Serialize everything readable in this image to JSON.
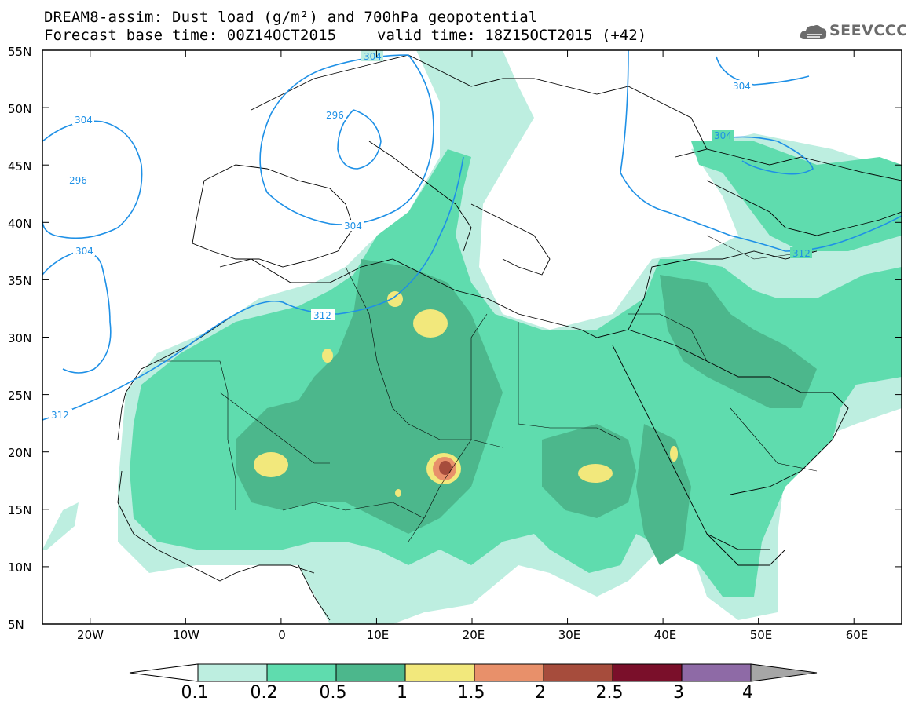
{
  "title": {
    "line1": "DREAM8-assim: Dust load (g/m²) and 700hPa geopotential",
    "line2_left": "Forecast base time: 00Z14OCT2015",
    "line2_right": "valid time: 18Z15OCT2015 (+42)"
  },
  "logo": {
    "text": "SEEVCCC",
    "icon": "cloud-logo-icon"
  },
  "axes": {
    "lat_ticks": [
      "55N",
      "50N",
      "45N",
      "40N",
      "35N",
      "30N",
      "25N",
      "20N",
      "15N",
      "10N",
      "5N"
    ],
    "lon_ticks": [
      "20W",
      "10W",
      "0",
      "10E",
      "20E",
      "30E",
      "40E",
      "50E",
      "60E"
    ],
    "lat_range": [
      5,
      55
    ],
    "lon_range": [
      -25,
      65
    ]
  },
  "contour_labels": {
    "c304_top": "304",
    "c296_europe": "296",
    "c304_atlantic": "304",
    "c296_atlantic": "296",
    "c304_west": "304",
    "c304_ne1": "304",
    "c304_ne2": "304",
    "c304_med": "304",
    "c312_africa": "312",
    "c312_east": "312",
    "c312_sw": "312"
  },
  "colorbar": {
    "levels": [
      "0.1",
      "0.2",
      "0.5",
      "1",
      "1.5",
      "2",
      "2.5",
      "3",
      "4"
    ],
    "colors": [
      "#bdeee0",
      "#5fdcae",
      "#4cb78c",
      "#f2e87c",
      "#e8906a",
      "#a64c3c",
      "#7a0f2a",
      "#8e6aa6"
    ],
    "over_color": "#a6a6a6",
    "under_color": "#ffffff"
  },
  "colors": {
    "contour": "#1e90e6",
    "dust_light": "#bdeee0",
    "dust_mid": "#5fdcae",
    "dust_dark": "#4cb78c",
    "dust_yellow": "#f2e87c",
    "dust_orange": "#e8906a",
    "dust_red": "#a64c3c"
  }
}
